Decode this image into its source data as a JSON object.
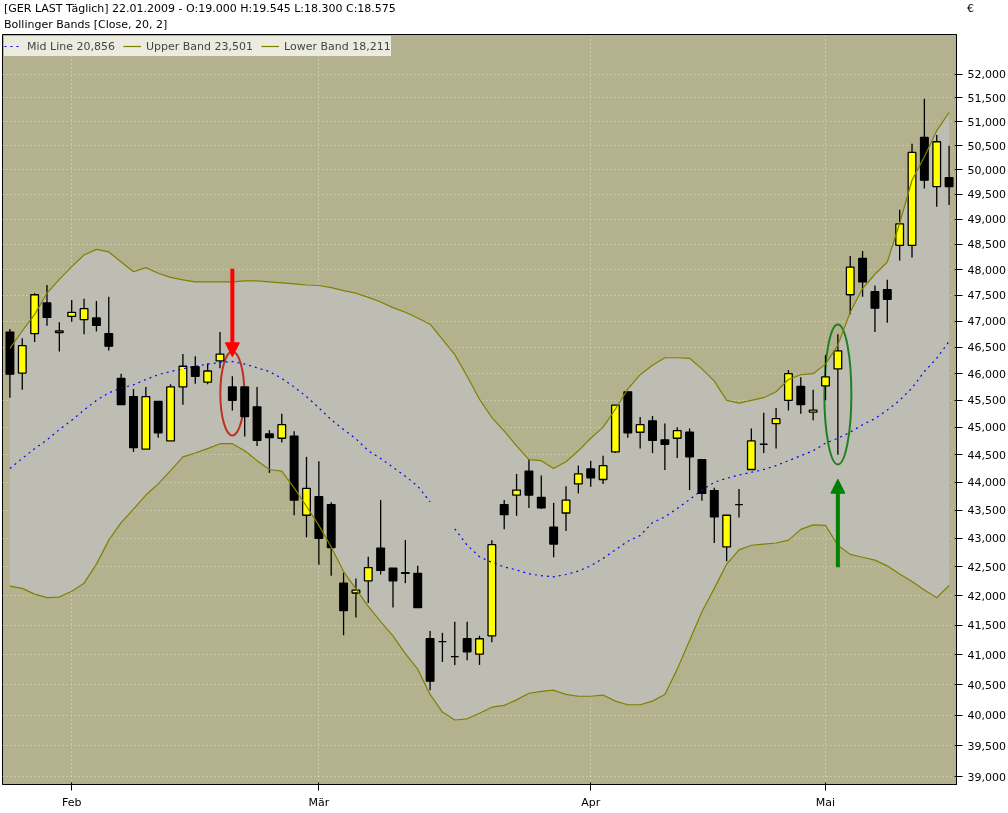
{
  "chart_data": {
    "type": "candlestick",
    "title": "[GER LAST Täglich] 22.01.2009 - O:19.000 H:19.545 L:18.300 C:18.575",
    "subtitle": "Bollinger Bands [Close, 20, 2]",
    "ylabel": "€",
    "log": true,
    "grid": true,
    "legend": "top left",
    "categories": [
      null,
      null,
      null,
      null,
      null,
      "Feb",
      null,
      null,
      null,
      null,
      null,
      null,
      null,
      null,
      null,
      null,
      null,
      null,
      null,
      null,
      null,
      null,
      null,
      null,
      null,
      "Mär",
      null,
      null,
      null,
      null,
      null,
      null,
      null,
      null,
      null,
      null,
      null,
      null,
      null,
      null,
      null,
      null,
      null,
      null,
      null,
      null,
      null,
      "Apr",
      null,
      null,
      null,
      null,
      null,
      null,
      null,
      null,
      null,
      null,
      null,
      null,
      null,
      null,
      null,
      null,
      null,
      null,
      "Mai",
      null,
      null,
      null,
      null,
      null,
      null,
      null,
      null,
      null,
      null
    ],
    "ylim": [
      38880,
      52850
    ],
    "yticks": [
      {
        "value": 39000,
        "label": "39,000"
      },
      {
        "value": 39500,
        "label": "39,500"
      },
      {
        "value": 40000,
        "label": "40,000"
      },
      {
        "value": 40500,
        "label": "40,500"
      },
      {
        "value": 41000,
        "label": "41,000"
      },
      {
        "value": 41500,
        "label": "41,500"
      },
      {
        "value": 42000,
        "label": "42,000"
      },
      {
        "value": 42500,
        "label": "42,500"
      },
      {
        "value": 43000,
        "label": "43,000"
      },
      {
        "value": 43500,
        "label": "43,500"
      },
      {
        "value": 44000,
        "label": "44,000"
      },
      {
        "value": 44500,
        "label": "44,500"
      },
      {
        "value": 45000,
        "label": "45,000"
      },
      {
        "value": 45500,
        "label": "45,500"
      },
      {
        "value": 46000,
        "label": "46,000"
      },
      {
        "value": 46500,
        "label": "46,500"
      },
      {
        "value": 47000,
        "label": "47,000"
      },
      {
        "value": 47500,
        "label": "47,500"
      },
      {
        "value": 48000,
        "label": "48,000"
      },
      {
        "value": 48500,
        "label": "48,500"
      },
      {
        "value": 49000,
        "label": "49,000"
      },
      {
        "value": 49500,
        "label": "49,500"
      },
      {
        "value": 50000,
        "label": "50,000"
      },
      {
        "value": 50500,
        "label": "50,500"
      },
      {
        "value": 51000,
        "label": "51,000"
      },
      {
        "value": 51500,
        "label": "51,500"
      },
      {
        "value": 52000,
        "label": "52,000"
      }
    ],
    "ohlc": [
      [
        46790,
        46850,
        45550,
        45990
      ],
      [
        46010,
        46670,
        45700,
        46530
      ],
      [
        46760,
        47540,
        46600,
        47510
      ],
      [
        47350,
        47700,
        46910,
        47070
      ],
      [
        46780,
        46980,
        46420,
        46810
      ],
      [
        47090,
        47410,
        46990,
        47170
      ],
      [
        47030,
        47430,
        46750,
        47240
      ],
      [
        47060,
        47390,
        46800,
        46920
      ],
      [
        46760,
        47470,
        46440,
        46520
      ],
      [
        45910,
        46000,
        45420,
        45420
      ],
      [
        45570,
        45710,
        44550,
        44630
      ],
      [
        44600,
        45750,
        44600,
        45570
      ],
      [
        45480,
        45480,
        44810,
        44900
      ],
      [
        44750,
        45800,
        44750,
        45750
      ],
      [
        45750,
        46370,
        45420,
        46140
      ],
      [
        46130,
        46330,
        45810,
        45950
      ],
      [
        45840,
        46190,
        45800,
        46050
      ],
      [
        46240,
        46790,
        46100,
        46370
      ],
      [
        45750,
        45950,
        45310,
        45500
      ],
      [
        45750,
        45750,
        44830,
        45200
      ],
      [
        45380,
        45750,
        44660,
        44760
      ],
      [
        44880,
        44950,
        44170,
        44810
      ],
      [
        44800,
        45250,
        44720,
        45050
      ],
      [
        44840,
        44930,
        43410,
        43680
      ],
      [
        43410,
        44460,
        43020,
        43890
      ],
      [
        43740,
        44380,
        42540,
        43000
      ],
      [
        43600,
        43640,
        42350,
        42840
      ],
      [
        42220,
        42400,
        41330,
        41750
      ],
      [
        42050,
        42300,
        41630,
        42100
      ],
      [
        42260,
        42680,
        41880,
        42490
      ],
      [
        42830,
        43680,
        42370,
        42440
      ],
      [
        42480,
        42480,
        41800,
        42260
      ],
      [
        42400,
        42970,
        42220,
        42390
      ],
      [
        42390,
        42520,
        41800,
        41800
      ],
      [
        41270,
        41400,
        40410,
        40560
      ],
      [
        41220,
        41370,
        40880,
        41220
      ],
      [
        40970,
        41560,
        40830,
        40970
      ],
      [
        41270,
        41560,
        40910,
        41050
      ],
      [
        41010,
        41320,
        40830,
        41270
      ],
      [
        41320,
        42970,
        41210,
        42890
      ],
      [
        43600,
        43680,
        43160,
        43420
      ],
      [
        43770,
        44150,
        43400,
        43860
      ],
      [
        44200,
        44410,
        43540,
        43770
      ],
      [
        43730,
        44120,
        43520,
        43540
      ],
      [
        43200,
        43630,
        42670,
        42900
      ],
      [
        43450,
        43930,
        43130,
        43680
      ],
      [
        43970,
        44300,
        43800,
        44150
      ],
      [
        44240,
        44390,
        43920,
        44080
      ],
      [
        44050,
        44480,
        43970,
        44300
      ],
      [
        44550,
        45410,
        44530,
        45410
      ],
      [
        45660,
        45660,
        44810,
        44900
      ],
      [
        44910,
        45190,
        44610,
        45050
      ],
      [
        45120,
        45210,
        44530,
        44760
      ],
      [
        44770,
        45070,
        44220,
        44690
      ],
      [
        44800,
        45000,
        44440,
        44940
      ],
      [
        44910,
        44980,
        43860,
        44460
      ],
      [
        44410,
        44410,
        43670,
        43800
      ],
      [
        43850,
        43900,
        42920,
        43380
      ],
      [
        42850,
        43410,
        42600,
        43410
      ],
      [
        43600,
        43880,
        43370,
        43600
      ],
      [
        44230,
        44980,
        44230,
        44750
      ],
      [
        44690,
        45270,
        44530,
        44690
      ],
      [
        45070,
        45360,
        44610,
        45160
      ],
      [
        45500,
        46070,
        45310,
        46000
      ],
      [
        45760,
        45930,
        45250,
        45420
      ],
      [
        45280,
        45700,
        45130,
        45320
      ],
      [
        45770,
        46350,
        45500,
        45940
      ],
      [
        46090,
        46750,
        44500,
        46430
      ],
      [
        47510,
        48270,
        47130,
        48050
      ],
      [
        48220,
        48370,
        47470,
        47760
      ],
      [
        47570,
        47690,
        46790,
        47250
      ],
      [
        47610,
        47800,
        46970,
        47420
      ],
      [
        48480,
        49190,
        48180,
        48910
      ],
      [
        48480,
        50540,
        48240,
        50360
      ],
      [
        50670,
        51480,
        49620,
        49790
      ],
      [
        49660,
        50720,
        49250,
        50580
      ],
      [
        49840,
        50500,
        49290,
        49660
      ]
    ],
    "series": [
      {
        "name": "Mid Line 20,856",
        "type": "line",
        "color": "#0000ff",
        "line_style": "dotted",
        "upper": [
          46480,
          46810,
          47130,
          47540,
          47810,
          48060,
          48290,
          48400,
          48350,
          48150,
          47960,
          48040,
          47930,
          47850,
          47800,
          47760,
          47760,
          47760,
          47760,
          47780,
          47780,
          47760,
          47740,
          47720,
          47700,
          47690,
          47650,
          47590,
          47540,
          47460,
          47370,
          47260,
          47170,
          47060,
          46940,
          46650,
          46360,
          45950,
          45520,
          45180,
          44930,
          44660,
          44410,
          44390,
          44250,
          44370,
          44570,
          44800,
          45000,
          45340,
          45710,
          45980,
          46160,
          46300,
          46300,
          46290,
          46090,
          45860,
          45500,
          45450,
          45500,
          45550,
          45660,
          45890,
          45980,
          46000,
          46180,
          46540,
          47170,
          47630,
          47910,
          48150,
          48920,
          49790,
          50270,
          50810,
          51190
        ],
        "lower": [
          42170,
          42130,
          42030,
          41970,
          41980,
          42080,
          42220,
          42550,
          42970,
          43280,
          43520,
          43770,
          43970,
          44210,
          44460,
          44530,
          44610,
          44700,
          44700,
          44570,
          44390,
          44230,
          44200,
          43900,
          43570,
          43230,
          42850,
          42420,
          42120,
          41820,
          41560,
          41320,
          41020,
          40760,
          40340,
          40050,
          39920,
          39940,
          40030,
          40130,
          40160,
          40250,
          40360,
          40390,
          40410,
          40340,
          40310,
          40310,
          40330,
          40230,
          40170,
          40170,
          40230,
          40340,
          40760,
          41240,
          41730,
          42130,
          42550,
          42800,
          42880,
          42900,
          42920,
          42970,
          43160,
          43240,
          43230,
          42880,
          42720,
          42670,
          42620,
          42520,
          42380,
          42250,
          42100,
          41970,
          42180
        ],
        "values": [
          44250,
          44430,
          44610,
          44770,
          44960,
          45130,
          45320,
          45500,
          45640,
          45730,
          45790,
          45890,
          45980,
          46040,
          46090,
          46140,
          46180,
          46210,
          46230,
          46180,
          46110,
          46040,
          45910,
          45750,
          45570,
          45360,
          45140,
          44960,
          44790,
          44570,
          44430,
          44270,
          44110,
          43930,
          43650,
          null,
          43170,
          42880,
          42680,
          42580,
          42500,
          42450,
          42380,
          42350,
          42330,
          42370,
          42430,
          42520,
          42650,
          42800,
          42950,
          43050,
          43280,
          43380,
          43530,
          43690,
          43860,
          44000,
          44070,
          44130,
          44180,
          44230,
          44300,
          44390,
          44480,
          44570,
          44710,
          44800,
          44910,
          45050,
          45160,
          45320,
          45500,
          45730,
          46040,
          46290,
          46610
        ]
      },
      {
        "name": "Upper Band 23,501",
        "type": "line",
        "color": "#808000",
        "line_style": "solid",
        "values": [
          46480,
          46810,
          47130,
          47540,
          47810,
          48060,
          48290,
          48400,
          48350,
          48150,
          47960,
          48040,
          47930,
          47850,
          47800,
          47760,
          47760,
          47760,
          47760,
          47780,
          47780,
          47760,
          47740,
          47720,
          47700,
          47690,
          47650,
          47590,
          47540,
          47460,
          47370,
          47260,
          47170,
          47060,
          46940,
          46650,
          46360,
          45950,
          45520,
          45180,
          44930,
          44660,
          44410,
          44390,
          44250,
          44370,
          44570,
          44800,
          45000,
          45340,
          45710,
          45980,
          46160,
          46300,
          46300,
          46290,
          46090,
          45860,
          45500,
          45450,
          45500,
          45550,
          45660,
          45890,
          45980,
          46000,
          46180,
          46540,
          47170,
          47630,
          47910,
          48150,
          48920,
          49790,
          50270,
          50810,
          51190
        ]
      },
      {
        "name": "Lower Band 18,211",
        "type": "line",
        "color": "#808000",
        "line_style": "solid",
        "values": [
          42170,
          42130,
          42030,
          41970,
          41980,
          42080,
          42220,
          42550,
          42970,
          43280,
          43520,
          43770,
          43970,
          44210,
          44460,
          44530,
          44610,
          44700,
          44700,
          44570,
          44390,
          44230,
          44200,
          43900,
          43570,
          43230,
          42850,
          42420,
          42120,
          41820,
          41560,
          41320,
          41020,
          40760,
          40340,
          40050,
          39920,
          39940,
          40030,
          40130,
          40160,
          40250,
          40360,
          40390,
          40410,
          40340,
          40310,
          40310,
          40330,
          40230,
          40170,
          40170,
          40230,
          40340,
          40760,
          41240,
          41730,
          42130,
          42550,
          42800,
          42880,
          42900,
          42920,
          42970,
          43160,
          43240,
          43230,
          42880,
          42720,
          42670,
          42620,
          42520,
          42380,
          42250,
          42100,
          41970,
          42180
        ]
      }
    ]
  }
}
